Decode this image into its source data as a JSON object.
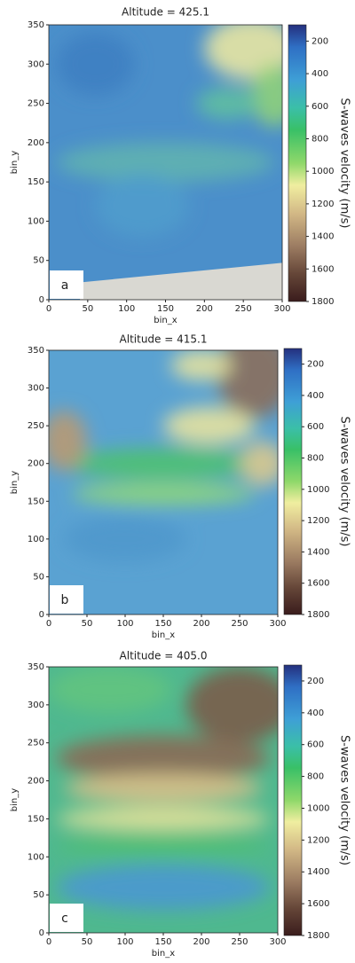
{
  "chart_data": [
    {
      "type": "heatmap",
      "title": "Altitude = 425.1",
      "panel_label": "a",
      "xlabel": "bin_x",
      "ylabel": "bin_y",
      "xlim": [
        0,
        300
      ],
      "ylim": [
        0,
        350
      ],
      "xticks": [
        0,
        50,
        100,
        150,
        200,
        250,
        300
      ],
      "yticks": [
        0,
        50,
        100,
        150,
        200,
        250,
        300,
        350
      ],
      "colorbar_label": "S-waves velocity (m/s)",
      "clim": [
        100,
        1800
      ],
      "colorbar_reversed": true,
      "colorbar_ticks": [
        200,
        400,
        600,
        800,
        1000,
        1200,
        1400,
        1600,
        1800
      ]
    },
    {
      "type": "heatmap",
      "title": "Altitude = 415.1",
      "panel_label": "b",
      "xlabel": "bin_x",
      "ylabel": "bin_y",
      "xlim": [
        0,
        300
      ],
      "ylim": [
        0,
        350
      ],
      "xticks": [
        0,
        50,
        100,
        150,
        200,
        250,
        300
      ],
      "yticks": [
        0,
        50,
        100,
        150,
        200,
        250,
        300,
        350
      ],
      "colorbar_label": "S-waves velocity (m/s)",
      "clim": [
        100,
        1800
      ],
      "colorbar_reversed": true,
      "colorbar_ticks": [
        200,
        400,
        600,
        800,
        1000,
        1200,
        1400,
        1600,
        1800
      ]
    },
    {
      "type": "heatmap",
      "title": "Altitude = 405.0",
      "panel_label": "c",
      "xlabel": "bin_x",
      "ylabel": "bin_y",
      "xlim": [
        0,
        300
      ],
      "ylim": [
        0,
        350
      ],
      "xticks": [
        0,
        50,
        100,
        150,
        200,
        250,
        300
      ],
      "yticks": [
        0,
        50,
        100,
        150,
        200,
        250,
        300,
        350
      ],
      "colorbar_label": "S-waves velocity (m/s)",
      "clim": [
        100,
        1800
      ],
      "colorbar_reversed": true,
      "colorbar_ticks": [
        200,
        400,
        600,
        800,
        1000,
        1200,
        1400,
        1600,
        1800
      ]
    }
  ]
}
